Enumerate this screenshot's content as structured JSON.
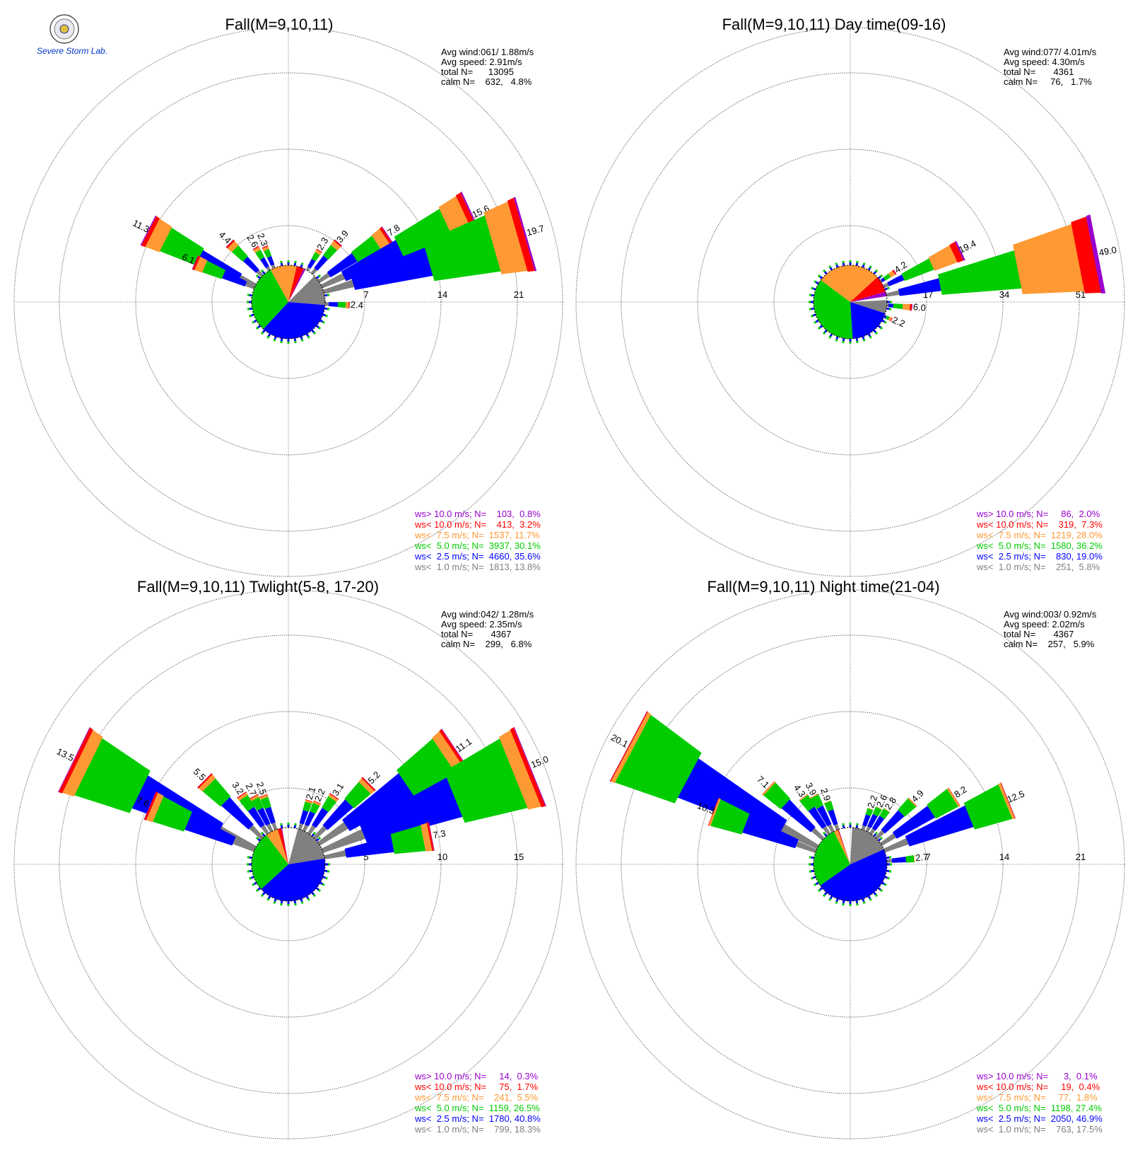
{
  "colors": {
    "calm_below_1": "#808080",
    "ws_lt_2_5": "#0000ff",
    "ws_lt_5_0": "#00cc00",
    "ws_lt_7_5": "#ff9933",
    "ws_lt_10_0": "#ff0000",
    "ws_gt_10_0": "#9900cc",
    "rings": "#555555",
    "text": "#000000"
  },
  "logo": {
    "icon": "severe-storm-lab-seal",
    "text": "Severe Storm Lab."
  },
  "chart_data": [
    {
      "type": "windrose",
      "title": "Fall(M=9,10,11)",
      "stats": [
        "Avg wind:061/ 1.88m/s",
        "Avg speed: 2.91m/s",
        "total N=      13095",
        "calm N=    632,   4.8%"
      ],
      "ring_values": [
        7,
        14,
        21
      ],
      "ring_labels": [
        "7",
        "14",
        "21"
      ],
      "rmax": 21,
      "direction_labels": [
        {
          "dir": 297,
          "value": 11.3
        },
        {
          "dir": 293,
          "value": 6.1
        },
        {
          "dir": 315,
          "value": 4.4
        },
        {
          "dir": 329,
          "value": 2.6
        },
        {
          "dir": 337,
          "value": 2.3
        },
        {
          "dir": 31,
          "value": 2.3
        },
        {
          "dir": 40,
          "value": 3.9
        },
        {
          "dir": 56,
          "value": 7.8
        },
        {
          "dir": 65,
          "value": 15.6
        },
        {
          "dir": 74,
          "value": 19.7
        },
        {
          "dir": 93,
          "value": 2.4
        }
      ],
      "pie": [
        {
          "category": "<1.0",
          "percent": 13.8
        },
        {
          "category": "<2.5",
          "percent": 35.6
        },
        {
          "category": "<5.0",
          "percent": 30.1
        },
        {
          "category": "<7.5",
          "percent": 11.7
        },
        {
          "category": "<10.0",
          "percent": 3.2
        },
        {
          "category": ">10.0",
          "percent": 0.8
        }
      ],
      "pie_start": 45,
      "legend": [
        {
          "label": "ws> 10.0 m/s; N=    103,  0.8%",
          "cat": "ws_gt_10_0"
        },
        {
          "label": "ws< 10.0 m/s; N=    413,  3.2%",
          "cat": "ws_lt_10_0"
        },
        {
          "label": "ws<  7.5 m/s; N=  1537, 11.7%",
          "cat": "ws_lt_7_5"
        },
        {
          "label": "ws<  5.0 m/s; N=  3937, 30.1%",
          "cat": "ws_lt_5_0"
        },
        {
          "label": "ws<  2.5 m/s; N=  4660, 35.6%",
          "cat": "ws_lt_2_5"
        },
        {
          "label": "ws<  1.0 m/s; N=  1813, 13.8%",
          "cat": "calm_below_1"
        }
      ]
    },
    {
      "type": "windrose",
      "title": "Fall(M=9,10,11) Day time(09-16)",
      "stats": [
        "Avg wind:077/ 4.01m/s",
        "Avg speed: 4.30m/s",
        "total N=       4361",
        "calm N=     76,   1.7%"
      ],
      "ring_values": [
        17,
        34,
        51
      ],
      "ring_labels": [
        "17",
        "34",
        "51"
      ],
      "rmax": 51,
      "direction_labels": [
        {
          "dir": 56,
          "value": 4.2
        },
        {
          "dir": 65,
          "value": 19.4
        },
        {
          "dir": 79,
          "value": 49.0
        },
        {
          "dir": 95,
          "value": 6.0
        },
        {
          "dir": 113,
          "value": 2.2
        }
      ],
      "pie": [
        {
          "category": "<1.0",
          "percent": 5.8
        },
        {
          "category": "<2.5",
          "percent": 19.0
        },
        {
          "category": "<5.0",
          "percent": 36.2
        },
        {
          "category": "<7.5",
          "percent": 28.0
        },
        {
          "category": "<10.0",
          "percent": 7.3
        },
        {
          "category": ">10.0",
          "percent": 2.0
        }
      ],
      "pie_start": 87,
      "legend": [
        {
          "label": "ws> 10.0 m/s; N=     86,  2.0%",
          "cat": "ws_gt_10_0"
        },
        {
          "label": "ws< 10.0 m/s; N=    319,  7.3%",
          "cat": "ws_lt_10_0"
        },
        {
          "label": "ws<  7.5 m/s; N=  1219, 28.0%",
          "cat": "ws_lt_7_5"
        },
        {
          "label": "ws<  5.0 m/s; N=  1580, 36.2%",
          "cat": "ws_lt_5_0"
        },
        {
          "label": "ws<  2.5 m/s; N=    830, 19.0%",
          "cat": "ws_lt_2_5"
        },
        {
          "label": "ws<  1.0 m/s; N=    251,  5.8%",
          "cat": "calm_below_1"
        }
      ]
    },
    {
      "type": "windrose",
      "title": "Fall(M=9,10,11) Twlight(5-8, 17-20)",
      "stats": [
        "Avg wind:042/ 1.28m/s",
        "Avg speed: 2.35m/s",
        "total N=       4367",
        "calm N=    299,   6.8%"
      ],
      "ring_values": [
        5,
        10,
        15
      ],
      "ring_labels": [
        "5",
        "10",
        "15"
      ],
      "rmax": 15,
      "direction_labels": [
        {
          "dir": 296,
          "value": 13.5
        },
        {
          "dir": 293,
          "value": 7.6
        },
        {
          "dir": 315,
          "value": 5.5
        },
        {
          "dir": 326,
          "value": 3.2
        },
        {
          "dir": 333,
          "value": 2.7
        },
        {
          "dir": 340,
          "value": 2.5
        },
        {
          "dir": 18,
          "value": 2.1
        },
        {
          "dir": 25,
          "value": 2.2
        },
        {
          "dir": 34,
          "value": 3.1
        },
        {
          "dir": 45,
          "value": 5.2
        },
        {
          "dir": 56,
          "value": 11.1
        },
        {
          "dir": 68,
          "value": 15.0
        },
        {
          "dir": 79,
          "value": 7.3
        }
      ],
      "pie": [
        {
          "category": "<1.0",
          "percent": 18.3
        },
        {
          "category": "<2.5",
          "percent": 40.8
        },
        {
          "category": "<5.0",
          "percent": 26.5
        },
        {
          "category": "<7.5",
          "percent": 5.5
        },
        {
          "category": "<10.0",
          "percent": 1.7
        },
        {
          "category": ">10.0",
          "percent": 0.3
        }
      ],
      "pie_start": 15,
      "legend": [
        {
          "label": "ws> 10.0 m/s; N=     14,  0.3%",
          "cat": "ws_gt_10_0"
        },
        {
          "label": "ws< 10.0 m/s; N=     75,  1.7%",
          "cat": "ws_lt_10_0"
        },
        {
          "label": "ws<  7.5 m/s; N=    241,  5.5%",
          "cat": "ws_lt_7_5"
        },
        {
          "label": "ws<  5.0 m/s; N=  1159, 26.5%",
          "cat": "ws_lt_5_0"
        },
        {
          "label": "ws<  2.5 m/s; N=  1780, 40.8%",
          "cat": "ws_lt_2_5"
        },
        {
          "label": "ws<  1.0 m/s; N=    799, 18.3%",
          "cat": "calm_below_1"
        }
      ]
    },
    {
      "type": "windrose",
      "title": "Fall(M=9,10,11) Night time(21-04)",
      "stats": [
        "Avg wind:003/ 0.92m/s",
        "Avg speed: 2.02m/s",
        "total N=       4367",
        "calm N=    257,   5.9%"
      ],
      "ring_values": [
        7,
        14,
        21
      ],
      "ring_labels": [
        "7",
        "14",
        "21"
      ],
      "rmax": 21,
      "direction_labels": [
        {
          "dir": 298,
          "value": 20.1
        },
        {
          "dir": 291,
          "value": 10.3
        },
        {
          "dir": 313,
          "value": 7.1
        },
        {
          "dir": 325,
          "value": 4.3
        },
        {
          "dir": 332,
          "value": 3.9
        },
        {
          "dir": 340,
          "value": 2.9
        },
        {
          "dir": 20,
          "value": 2.2
        },
        {
          "dir": 27,
          "value": 2.6
        },
        {
          "dir": 34,
          "value": 2.8
        },
        {
          "dir": 45,
          "value": 4.9
        },
        {
          "dir": 57,
          "value": 8.2
        },
        {
          "dir": 68,
          "value": 12.5
        },
        {
          "dir": 85,
          "value": 2.7
        }
      ],
      "pie": [
        {
          "category": "<1.0",
          "percent": 17.5
        },
        {
          "category": "<2.5",
          "percent": 46.9
        },
        {
          "category": "<5.0",
          "percent": 27.4
        },
        {
          "category": "<7.5",
          "percent": 1.8
        },
        {
          "category": "<10.0",
          "percent": 0.4
        },
        {
          "category": ">10.0",
          "percent": 0.1
        }
      ],
      "pie_start": 3,
      "legend": [
        {
          "label": "ws> 10.0 m/s; N=      3,  0.1%",
          "cat": "ws_gt_10_0"
        },
        {
          "label": "ws< 10.0 m/s; N=     19,  0.4%",
          "cat": "ws_lt_10_0"
        },
        {
          "label": "ws<  7.5 m/s; N=     77,  1.8%",
          "cat": "ws_lt_7_5"
        },
        {
          "label": "ws<  5.0 m/s; N=  1198, 27.4%",
          "cat": "ws_lt_5_0"
        },
        {
          "label": "ws<  2.5 m/s; N=  2050, 46.9%",
          "cat": "ws_lt_2_5"
        },
        {
          "label": "ws<  1.0 m/s; N=    763, 17.5%",
          "cat": "calm_below_1"
        }
      ]
    }
  ]
}
